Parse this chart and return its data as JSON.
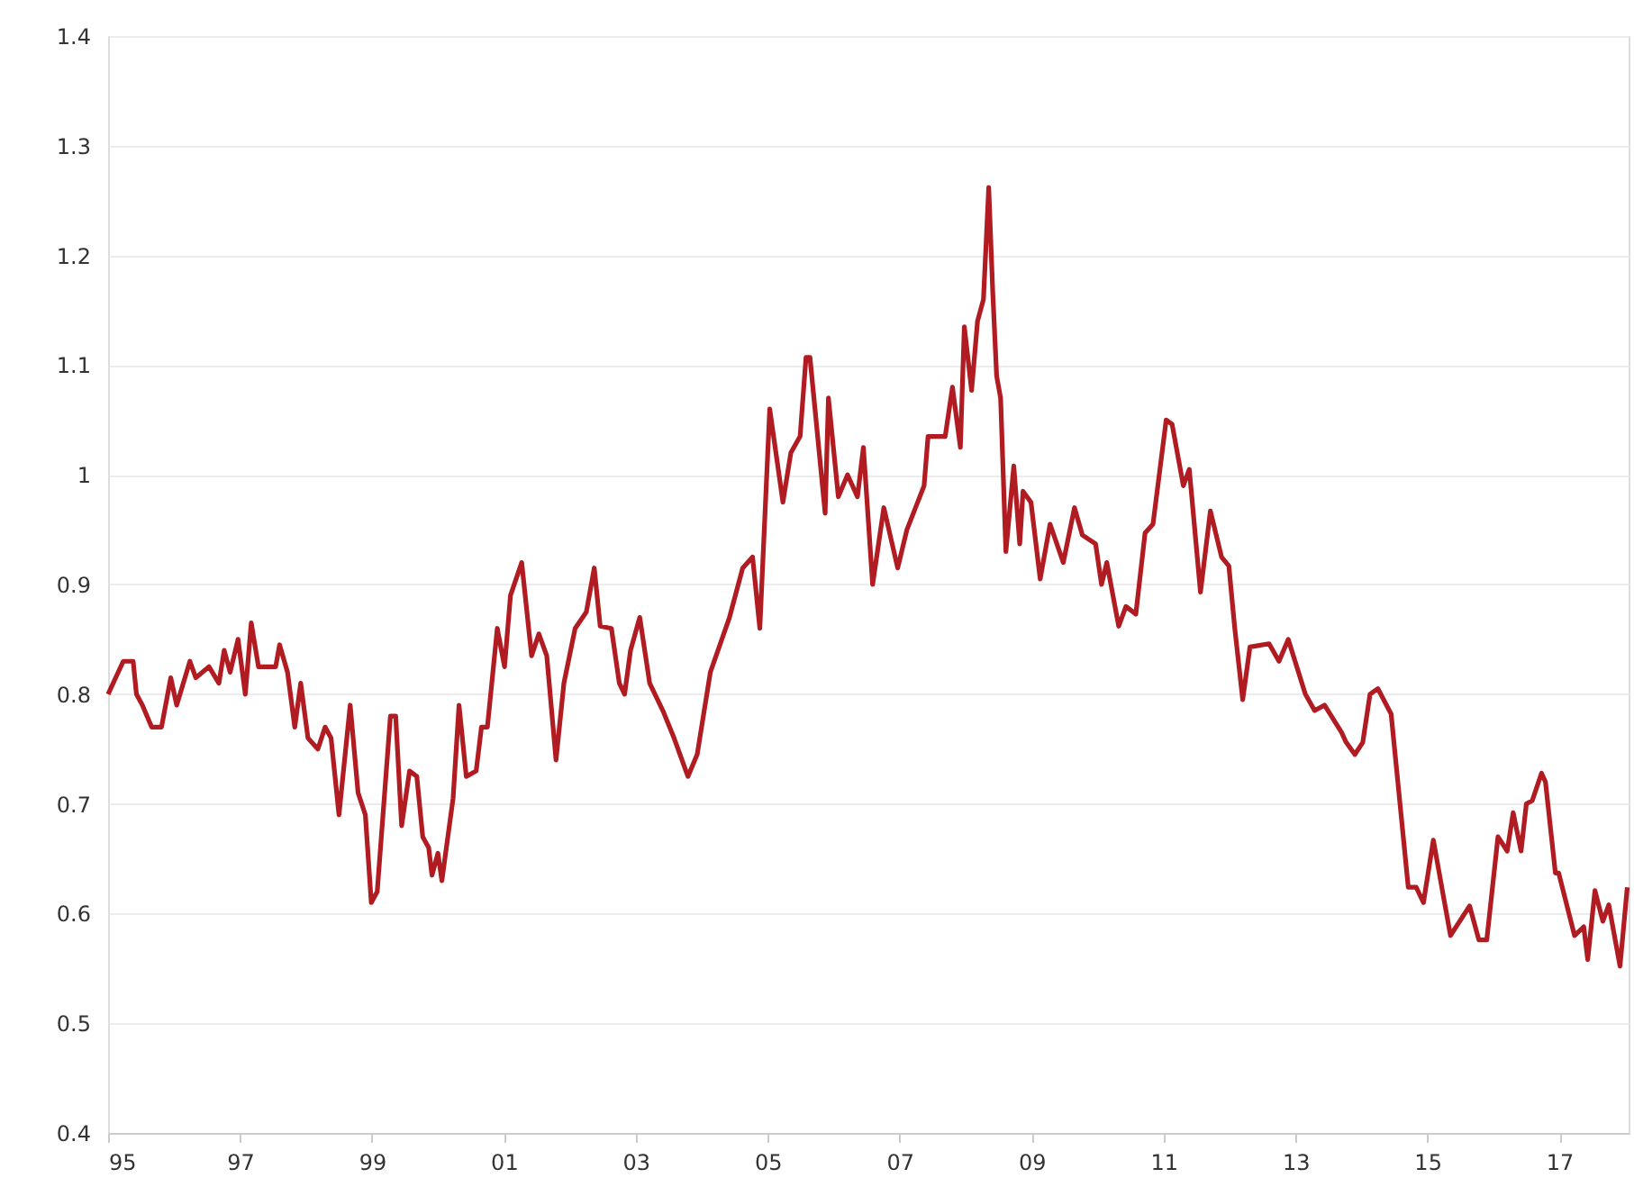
{
  "chart_data": {
    "type": "line",
    "xlim": [
      1995,
      2018.05
    ],
    "ylim": [
      0.4,
      1.4
    ],
    "xticks": [
      {
        "value": 1995,
        "label": "95"
      },
      {
        "value": 1997,
        "label": "97"
      },
      {
        "value": 1999,
        "label": "99"
      },
      {
        "value": 2001,
        "label": "01"
      },
      {
        "value": 2003,
        "label": "03"
      },
      {
        "value": 2005,
        "label": "05"
      },
      {
        "value": 2007,
        "label": "07"
      },
      {
        "value": 2009,
        "label": "09"
      },
      {
        "value": 2011,
        "label": "11"
      },
      {
        "value": 2013,
        "label": "13"
      },
      {
        "value": 2015,
        "label": "15"
      },
      {
        "value": 2017,
        "label": "17"
      }
    ],
    "yticks": [
      0.4,
      0.5,
      0.6,
      0.7,
      0.8,
      0.9,
      1,
      1.1,
      1.2,
      1.3,
      1.4
    ],
    "grid": "y",
    "marker": "none",
    "line_style": "solid",
    "x": [
      1995.0,
      1995.23,
      1995.38,
      1995.43,
      1995.52,
      1995.66,
      1995.81,
      1995.95,
      1996.04,
      1996.24,
      1996.33,
      1996.53,
      1996.68,
      1996.76,
      1996.85,
      1996.97,
      1997.08,
      1997.17,
      1997.28,
      1997.54,
      1997.6,
      1997.72,
      1997.83,
      1997.92,
      1998.03,
      1998.18,
      1998.29,
      1998.38,
      1998.5,
      1998.67,
      1998.79,
      1998.9,
      1998.99,
      1999.08,
      1999.28,
      1999.36,
      1999.45,
      1999.57,
      1999.68,
      1999.77,
      1999.86,
      1999.91,
      2000.0,
      2000.06,
      2000.23,
      2000.32,
      2000.43,
      2000.58,
      2000.66,
      2000.75,
      2000.9,
      2001.01,
      2001.1,
      2001.27,
      2001.42,
      2001.53,
      2001.65,
      2001.79,
      2001.91,
      2002.08,
      2002.25,
      2002.37,
      2002.46,
      2002.63,
      2002.75,
      2002.83,
      2002.92,
      2003.06,
      2003.21,
      2003.41,
      2003.58,
      2003.79,
      2003.93,
      2004.13,
      2004.42,
      2004.62,
      2004.77,
      2004.88,
      2005.03,
      2005.23,
      2005.35,
      2005.49,
      2005.58,
      2005.64,
      2005.87,
      2005.92,
      2006.07,
      2006.21,
      2006.36,
      2006.45,
      2006.59,
      2006.76,
      2006.97,
      2007.11,
      2007.37,
      2007.43,
      2007.69,
      2007.8,
      2007.92,
      2007.98,
      2008.09,
      2008.18,
      2008.27,
      2008.35,
      2008.41,
      2008.47,
      2008.53,
      2008.61,
      2008.73,
      2008.82,
      2008.87,
      2008.99,
      2009.13,
      2009.28,
      2009.48,
      2009.65,
      2009.77,
      2009.97,
      2010.06,
      2010.14,
      2010.32,
      2010.43,
      2010.58,
      2010.72,
      2010.84,
      2011.04,
      2011.13,
      2011.3,
      2011.39,
      2011.56,
      2011.71,
      2011.88,
      2011.99,
      2012.08,
      2012.2,
      2012.31,
      2012.6,
      2012.75,
      2012.89,
      2013.15,
      2013.29,
      2013.44,
      2013.7,
      2013.76,
      2013.9,
      2014.02,
      2014.13,
      2014.25,
      2014.45,
      2014.71,
      2014.83,
      2014.94,
      2015.09,
      2015.2,
      2015.35,
      2015.64,
      2015.78,
      2015.9,
      2016.07,
      2016.21,
      2016.3,
      2016.42,
      2016.5,
      2016.59,
      2016.73,
      2016.79,
      2016.94,
      2016.99,
      2017.23,
      2017.37,
      2017.43,
      2017.54,
      2017.66,
      2017.75,
      2017.92,
      2018.03
    ],
    "series": [
      {
        "color": "#b01c22",
        "values": [
          0.8,
          0.83,
          0.83,
          0.8,
          0.79,
          0.77,
          0.77,
          0.815,
          0.79,
          0.83,
          0.815,
          0.825,
          0.81,
          0.84,
          0.82,
          0.85,
          0.8,
          0.865,
          0.825,
          0.825,
          0.845,
          0.82,
          0.77,
          0.81,
          0.76,
          0.75,
          0.77,
          0.76,
          0.69,
          0.79,
          0.71,
          0.69,
          0.61,
          0.62,
          0.78,
          0.78,
          0.68,
          0.73,
          0.725,
          0.67,
          0.66,
          0.635,
          0.655,
          0.63,
          0.705,
          0.79,
          0.725,
          0.73,
          0.77,
          0.77,
          0.86,
          0.825,
          0.89,
          0.92,
          0.835,
          0.855,
          0.835,
          0.74,
          0.81,
          0.86,
          0.875,
          0.915,
          0.862,
          0.86,
          0.81,
          0.8,
          0.84,
          0.87,
          0.81,
          0.785,
          0.76,
          0.725,
          0.745,
          0.82,
          0.87,
          0.915,
          0.925,
          0.86,
          1.06,
          0.975,
          1.02,
          1.035,
          1.107,
          1.107,
          0.965,
          1.07,
          0.98,
          1.0,
          0.98,
          1.025,
          0.9,
          0.97,
          0.915,
          0.95,
          0.99,
          1.035,
          1.035,
          1.08,
          1.025,
          1.135,
          1.077,
          1.14,
          1.16,
          1.262,
          1.168,
          1.09,
          1.07,
          0.93,
          1.008,
          0.937,
          0.985,
          0.975,
          0.905,
          0.955,
          0.92,
          0.97,
          0.945,
          0.937,
          0.9,
          0.92,
          0.862,
          0.88,
          0.873,
          0.947,
          0.955,
          1.05,
          1.046,
          0.99,
          1.005,
          0.893,
          0.967,
          0.925,
          0.917,
          0.86,
          0.795,
          0.843,
          0.846,
          0.83,
          0.85,
          0.8,
          0.785,
          0.79,
          0.765,
          0.757,
          0.745,
          0.756,
          0.8,
          0.805,
          0.782,
          0.624,
          0.624,
          0.61,
          0.667,
          0.63,
          0.58,
          0.607,
          0.576,
          0.576,
          0.67,
          0.657,
          0.692,
          0.657,
          0.7,
          0.703,
          0.728,
          0.72,
          0.637,
          0.637,
          0.58,
          0.588,
          0.558,
          0.621,
          0.593,
          0.608,
          0.552,
          0.624
        ]
      }
    ]
  }
}
